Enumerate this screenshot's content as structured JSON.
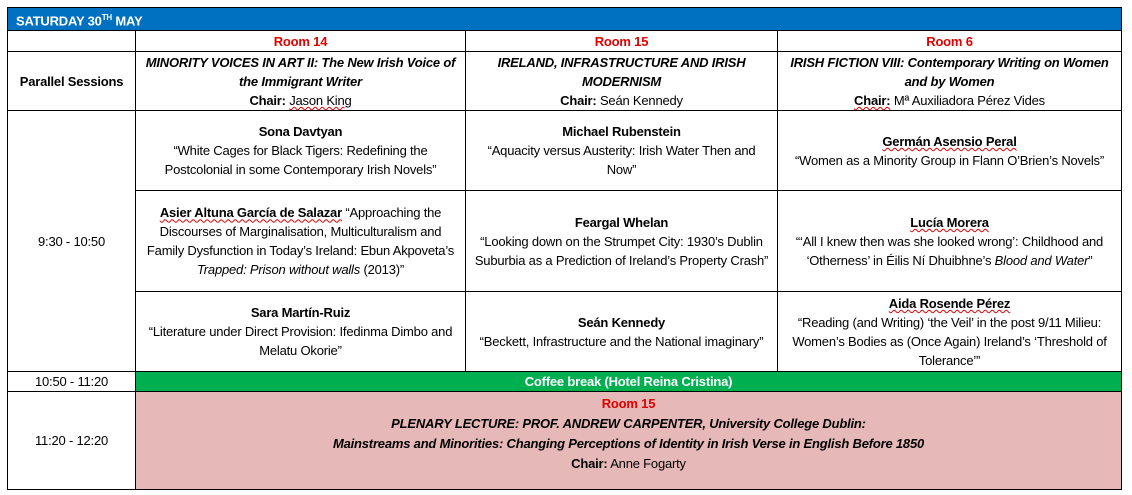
{
  "day": {
    "label": "SATURDAY 30",
    "sup": "TH",
    "month": "MAY"
  },
  "rooms": [
    "Room 14",
    "Room 15",
    "Room 6"
  ],
  "parallel_label": "Parallel Sessions",
  "chair_label": "Chair:",
  "sessions": [
    {
      "title": "MINORITY VOICES IN ART II: The New Irish Voice of the Immigrant Writer",
      "chair": "Jason King"
    },
    {
      "title": "IRELAND, INFRASTRUCTURE AND IRISH MODERNISM",
      "chair": "Seán Kennedy"
    },
    {
      "title": "IRISH FICTION VIII: Contemporary Writing on Women and by Women",
      "chair": "Mª Auxiliadora Pérez Vides"
    }
  ],
  "time_slot_1": "9:30 - 10:50",
  "talks": [
    [
      {
        "speaker": "Sona Davtyan",
        "title": "“White Cages for Black Tigers: Redefining the Postcolonial in some Contemporary Irish Novels”"
      },
      {
        "speaker": "Michael Rubenstein",
        "title": "“Aquacity versus Austerity: Irish Water Then and Now”"
      },
      {
        "speaker": "Germán Asensio Peral",
        "title": "“Women as a Minority Group in Flann O’Brien’s Novels”"
      }
    ],
    [
      {
        "speaker": "Asier Altuna García de Salazar",
        "title": "“Approaching the Discourses of Marginalisation, Multiculturalism and Family Dysfunction in Today’s Ireland: Ebun Akpoveta’s ",
        "italic": "Trapped: Prison without walls",
        "tail": " (2013)”"
      },
      {
        "speaker": "Feargal Whelan",
        "title": "“Looking down on the Strumpet City: 1930’s Dublin Suburbia as a Prediction of Ireland’s Property Crash”"
      },
      {
        "speaker": "Lucía Morera",
        "title": "“‘All I knew then was she looked wrong’: Childhood and ‘Otherness’ in Éilis Ní Dhuibhne’s ",
        "italic": "Blood and Water",
        "tail": "”"
      }
    ],
    [
      {
        "speaker": "Sara Martín-Ruiz",
        "title": "“Literature under Direct Provision: Ifedinma Dimbo and Melatu Okorie”"
      },
      {
        "speaker": "Seán Kennedy",
        "title": "“Beckett, Infrastructure and the National imaginary”"
      },
      {
        "speaker": "Aida Rosende Pérez",
        "title": "“Reading (and Writing) ‘the Veil’ in the post 9/11 Milieu: Women’s Bodies as (Once Again) Ireland’s ‘Threshold of Tolerance’”"
      }
    ]
  ],
  "coffee": {
    "time": "10:50 - 11:20",
    "label": "Coffee break (Hotel Reina Cristina)"
  },
  "plenary": {
    "time": "11:20 - 12:20",
    "room": "Room 15",
    "line1": "PLENARY LECTURE: PROF. ANDREW CARPENTER, University College Dublin:",
    "line2": "Mainstreams and Minorities: Changing  Perceptions of Identity in Irish Verse in English Before 1850",
    "chair": "Anne Fogarty"
  },
  "colors": {
    "header_blue": "#0070c0",
    "room_red": "#e00000",
    "coffee_green": "#00b050",
    "plenary_pink": "#e6b8b7"
  }
}
